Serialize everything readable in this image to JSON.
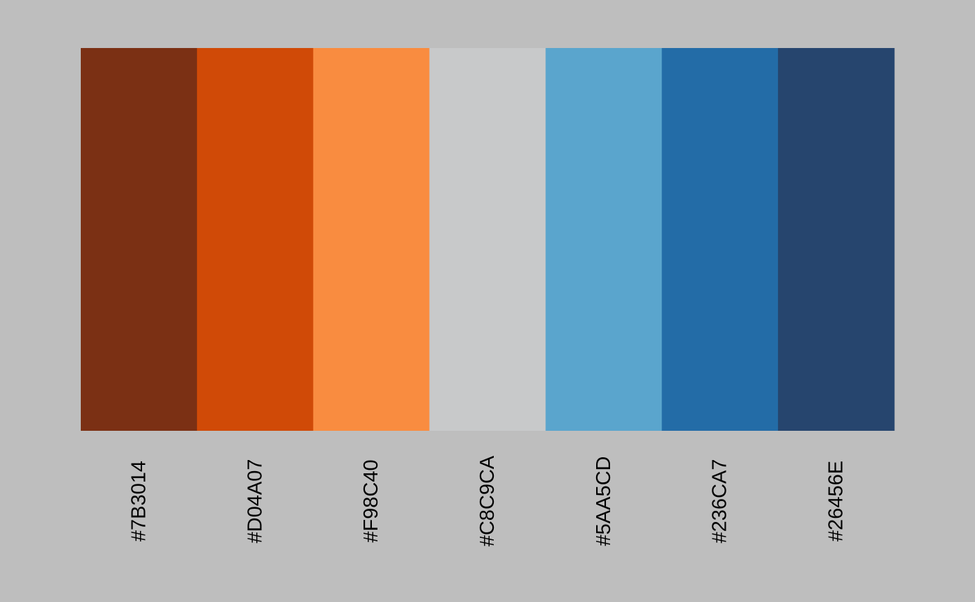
{
  "background": "#BEBEBE",
  "chart_data": {
    "type": "bar",
    "categories": [
      "#7B3014",
      "#D04A07",
      "#F98C40",
      "#C8C9CA",
      "#5AA5CD",
      "#236CA7",
      "#26456E"
    ],
    "colors": [
      "#7B3014",
      "#D04A07",
      "#F98C40",
      "#C8C9CA",
      "#5AA5CD",
      "#236CA7",
      "#26456E"
    ],
    "values": [
      1,
      1,
      1,
      1,
      1,
      1,
      1
    ],
    "title": "",
    "xlabel": "",
    "ylabel": "",
    "tick_label_rotation": -90,
    "grid": false,
    "legend": "none"
  }
}
